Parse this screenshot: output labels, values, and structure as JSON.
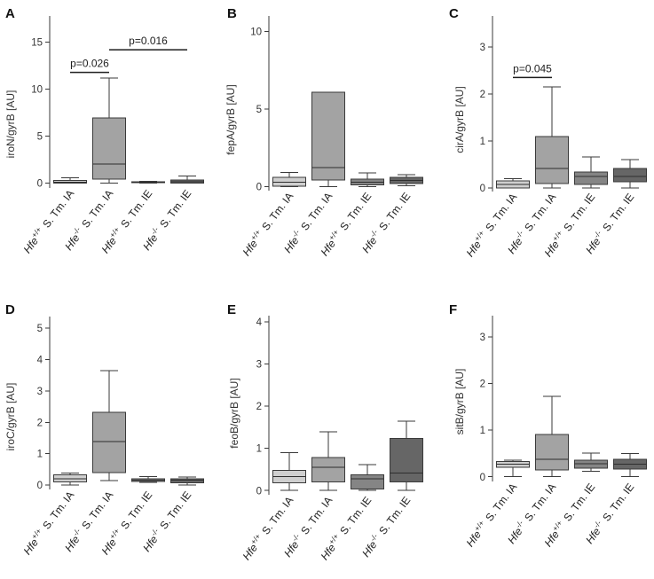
{
  "figure": {
    "group_colors": [
      "#cfcfcf",
      "#a3a3a3",
      "#858585",
      "#666666"
    ]
  },
  "chart_data": [
    {
      "type": "box",
      "panel": "A",
      "ylabel": "iroN/gyrB [AU]",
      "ylim": [
        -0.5,
        17.8
      ],
      "yticks": [
        0,
        5,
        10,
        15
      ],
      "categories": [
        {
          "strain": "Hfe",
          "genotype": "+/+",
          "group": "S. Tm. IA"
        },
        {
          "strain": "Hfe",
          "genotype": "-/-",
          "group": "S. Tm. IA"
        },
        {
          "strain": "Hfe",
          "genotype": "+/+",
          "group": "S. Tm. IE"
        },
        {
          "strain": "Hfe",
          "genotype": "-/-",
          "group": "S. Tm. IE"
        }
      ],
      "boxes": [
        {
          "low": 0,
          "q1": 0.0,
          "median": 0.12,
          "q3": 0.3,
          "high": 0.6
        },
        {
          "low": 0,
          "q1": 0.45,
          "median": 2.05,
          "q3": 6.95,
          "high": 11.2
        },
        {
          "low": 0.02,
          "q1": 0.05,
          "median": 0.1,
          "q3": 0.18,
          "high": 0.22
        },
        {
          "low": 0,
          "q1": 0.02,
          "median": 0.15,
          "q3": 0.35,
          "high": 0.75
        }
      ],
      "annotations": [
        {
          "text": "p=0.026",
          "from": 0,
          "to": 1,
          "y": 11.8
        },
        {
          "text": "p=0.016",
          "from": 1,
          "to": 3,
          "y": 14.2
        }
      ]
    },
    {
      "type": "box",
      "panel": "B",
      "ylabel": "fepA/gyrB [AU]",
      "ylim": [
        -0.25,
        11
      ],
      "yticks": [
        0,
        5,
        10
      ],
      "categories": [
        {
          "strain": "Hfe",
          "genotype": "+/+",
          "group": "S. Tm. IA"
        },
        {
          "strain": "Hfe",
          "genotype": "-/-",
          "group": "S. Tm. IA"
        },
        {
          "strain": "Hfe",
          "genotype": "+/+",
          "group": "S. Tm. IE"
        },
        {
          "strain": "Hfe",
          "genotype": "-/-",
          "group": "S. Tm. IE"
        }
      ],
      "boxes": [
        {
          "low": 0,
          "q1": 0.03,
          "median": 0.3,
          "q3": 0.6,
          "high": 0.92
        },
        {
          "low": 0,
          "q1": 0.43,
          "median": 1.23,
          "q3": 6.1,
          "high": 6.1
        },
        {
          "low": 0,
          "q1": 0.12,
          "median": 0.3,
          "q3": 0.5,
          "high": 0.88
        },
        {
          "low": 0.05,
          "q1": 0.2,
          "median": 0.4,
          "q3": 0.6,
          "high": 0.78
        }
      ],
      "annotations": []
    },
    {
      "type": "box",
      "panel": "C",
      "ylabel": "cirA/gyrB [AU]",
      "ylim": [
        -0.08,
        3.66
      ],
      "yticks": [
        0,
        1,
        2,
        3
      ],
      "categories": [
        {
          "strain": "Hfe",
          "genotype": "+/+",
          "group": "S. Tm. IA"
        },
        {
          "strain": "Hfe",
          "genotype": "-/-",
          "group": "S. Tm. IA"
        },
        {
          "strain": "Hfe",
          "genotype": "+/+",
          "group": "S. Tm. IE"
        },
        {
          "strain": "Hfe",
          "genotype": "-/-",
          "group": "S. Tm. IE"
        }
      ],
      "boxes": [
        {
          "low": 0,
          "q1": 0.0,
          "median": 0.07,
          "q3": 0.15,
          "high": 0.19
        },
        {
          "low": 0,
          "q1": 0.09,
          "median": 0.41,
          "q3": 1.09,
          "high": 2.15
        },
        {
          "low": 0,
          "q1": 0.07,
          "median": 0.24,
          "q3": 0.34,
          "high": 0.66
        },
        {
          "low": 0,
          "q1": 0.13,
          "median": 0.24,
          "q3": 0.41,
          "high": 0.6
        }
      ],
      "annotations": [
        {
          "text": "p=0.045",
          "from": 0,
          "to": 1,
          "y": 2.35
        }
      ]
    },
    {
      "type": "box",
      "panel": "D",
      "ylabel": "iroC/gyrB [AU]",
      "ylim": [
        -0.14,
        5.37
      ],
      "yticks": [
        0,
        1,
        2,
        3,
        4,
        5
      ],
      "categories": [
        {
          "strain": "Hfe",
          "genotype": "+/+",
          "group": "S. Tm. IA"
        },
        {
          "strain": "Hfe",
          "genotype": "-/-",
          "group": "S. Tm. IA"
        },
        {
          "strain": "Hfe",
          "genotype": "+/+",
          "group": "S. Tm. IE"
        },
        {
          "strain": "Hfe",
          "genotype": "-/-",
          "group": "S. Tm. IE"
        }
      ],
      "boxes": [
        {
          "low": 0,
          "q1": 0.1,
          "median": 0.2,
          "q3": 0.32,
          "high": 0.38
        },
        {
          "low": 0.14,
          "q1": 0.4,
          "median": 1.38,
          "q3": 2.32,
          "high": 3.64
        },
        {
          "low": 0.08,
          "q1": 0.11,
          "median": 0.15,
          "q3": 0.2,
          "high": 0.27
        },
        {
          "low": 0,
          "q1": 0.07,
          "median": 0.15,
          "q3": 0.2,
          "high": 0.25
        }
      ],
      "annotations": []
    },
    {
      "type": "box",
      "panel": "E",
      "ylabel": "feoB/gyrB [AU]",
      "ylim": [
        -0.1,
        4.15
      ],
      "yticks": [
        0,
        1,
        2,
        3,
        4
      ],
      "categories": [
        {
          "strain": "Hfe",
          "genotype": "+/+",
          "group": "S. Tm. IA"
        },
        {
          "strain": "Hfe",
          "genotype": "-/-",
          "group": "S. Tm. IA"
        },
        {
          "strain": "Hfe",
          "genotype": "+/+",
          "group": "S. Tm. IE"
        },
        {
          "strain": "Hfe",
          "genotype": "-/-",
          "group": "S. Tm. IE"
        }
      ],
      "boxes": [
        {
          "low": 0,
          "q1": 0.18,
          "median": 0.33,
          "q3": 0.48,
          "high": 0.9
        },
        {
          "low": 0,
          "q1": 0.2,
          "median": 0.55,
          "q3": 0.78,
          "high": 1.39
        },
        {
          "low": 0,
          "q1": 0.04,
          "median": 0.28,
          "q3": 0.37,
          "high": 0.62
        },
        {
          "low": 0,
          "q1": 0.2,
          "median": 0.42,
          "q3": 1.24,
          "high": 1.65
        }
      ],
      "annotations": []
    },
    {
      "type": "box",
      "panel": "F",
      "ylabel": "sitB/gyrB [AU]",
      "ylim": [
        -0.1,
        3.46
      ],
      "yticks": [
        0,
        1,
        2,
        3
      ],
      "categories": [
        {
          "strain": "Hfe",
          "genotype": "+/+",
          "group": "S. Tm. IA"
        },
        {
          "strain": "Hfe",
          "genotype": "-/-",
          "group": "S. Tm. IA"
        },
        {
          "strain": "Hfe",
          "genotype": "+/+",
          "group": "S. Tm. IE"
        },
        {
          "strain": "Hfe",
          "genotype": "-/-",
          "group": "S. Tm. IE"
        }
      ],
      "boxes": [
        {
          "low": 0,
          "q1": 0.2,
          "median": 0.27,
          "q3": 0.33,
          "high": 0.36
        },
        {
          "low": 0,
          "q1": 0.15,
          "median": 0.38,
          "q3": 0.91,
          "high": 1.73
        },
        {
          "low": 0.12,
          "q1": 0.19,
          "median": 0.28,
          "q3": 0.36,
          "high": 0.51
        },
        {
          "low": 0,
          "q1": 0.17,
          "median": 0.27,
          "q3": 0.38,
          "high": 0.5
        }
      ],
      "annotations": []
    }
  ]
}
